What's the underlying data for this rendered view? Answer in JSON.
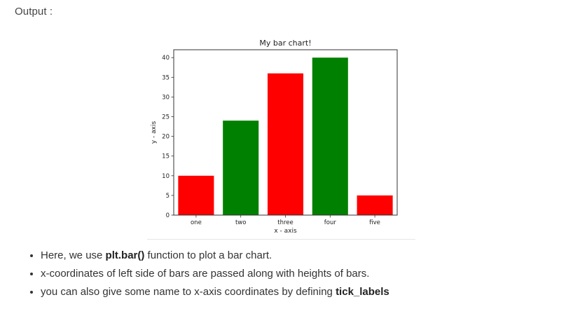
{
  "output_label": "Output :",
  "chart_data": {
    "type": "bar",
    "title": "My bar chart!",
    "xlabel": "x - axis",
    "ylabel": "y - axis",
    "categories": [
      "one",
      "two",
      "three",
      "four",
      "five"
    ],
    "values": [
      10,
      24,
      36,
      40,
      5
    ],
    "bar_colors": [
      "#ff0000",
      "#008000",
      "#ff0000",
      "#008000",
      "#ff0000"
    ],
    "ylim": [
      0,
      42
    ],
    "yticks": [
      0,
      5,
      10,
      15,
      20,
      25,
      30,
      35,
      40
    ],
    "grid": false
  },
  "bullets": [
    {
      "pre": "Here, we use ",
      "bold": "plt.bar()",
      "post": " function to plot a bar chart."
    },
    {
      "pre": "x-coordinates of left side of bars are passed along with heights of bars.",
      "bold": "",
      "post": ""
    },
    {
      "pre": "you can also give some name to x-axis coordinates by defining ",
      "bold": "tick_labels",
      "post": ""
    }
  ]
}
